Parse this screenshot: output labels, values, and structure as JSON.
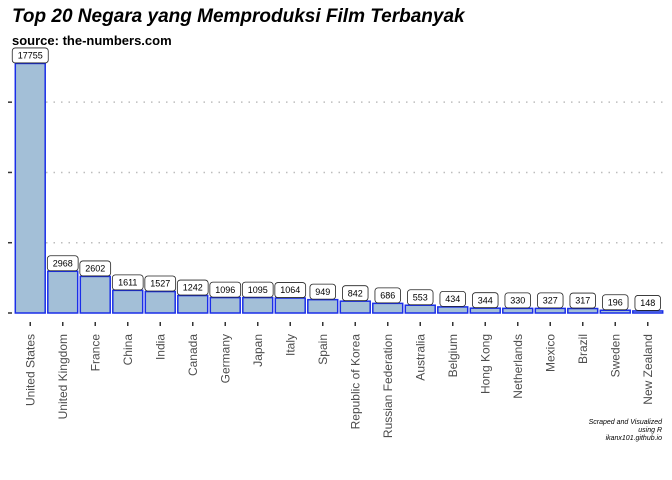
{
  "title": "Top 20 Negara yang Memproduksi Film Terbanyak",
  "subtitle": "source: the-numbers.com",
  "caption": [
    "Scraped and Visualized",
    "using R",
    "ikanx101.github.io"
  ],
  "colors": {
    "bar_fill": "#a3bfd7",
    "bar_stroke": "#1a2ee8",
    "grid": "#bdbdbd"
  },
  "chart_data": {
    "type": "bar",
    "categories": [
      "United States",
      "United Kingdom",
      "France",
      "China",
      "India",
      "Canada",
      "Germany",
      "Japan",
      "Italy",
      "Spain",
      "Republic of Korea",
      "Russian Federation",
      "Australia",
      "Belgium",
      "Hong Kong",
      "Netherlands",
      "Mexico",
      "Brazil",
      "Sweden",
      "New Zealand"
    ],
    "values": [
      17755,
      2968,
      2602,
      1611,
      1527,
      1242,
      1096,
      1095,
      1064,
      949,
      842,
      686,
      553,
      434,
      344,
      330,
      327,
      317,
      196,
      148
    ],
    "title": "Top 20 Negara yang Memproduksi Film Terbanyak",
    "subtitle": "source: the-numbers.com",
    "xlabel": "",
    "ylabel": "",
    "ylim": [
      0,
      18000
    ],
    "y_tick_labels_shown": false,
    "grid": "horizontal dotted",
    "data_labels": true
  }
}
